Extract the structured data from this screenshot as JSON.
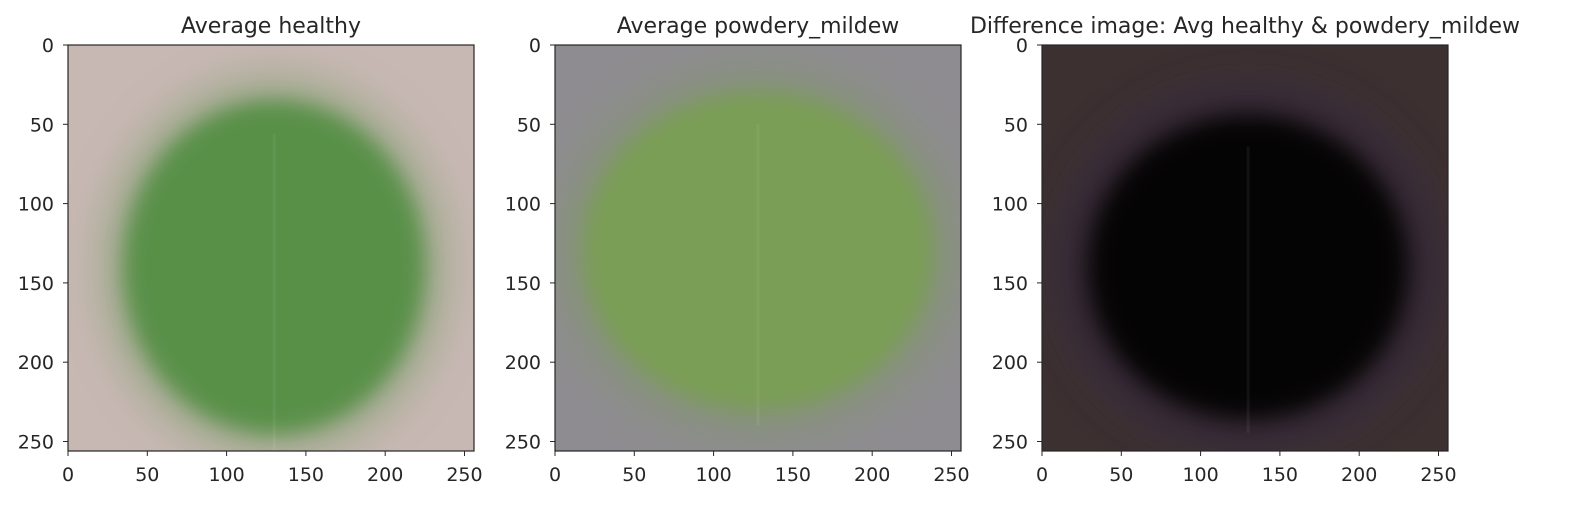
{
  "chart_data": [
    {
      "type": "heatmap",
      "title": "Average healthy",
      "xlabel": "",
      "ylabel": "",
      "xlim": [
        0,
        256
      ],
      "ylim": [
        256,
        0
      ],
      "xticks": [
        0,
        50,
        100,
        150,
        200,
        250
      ],
      "yticks": [
        0,
        50,
        100,
        150,
        200,
        250
      ],
      "grid": false,
      "background": "#c8b8b4",
      "leaf_color": "#4e8c3e",
      "leaf_center": [
        130,
        140
      ],
      "leaf_radius": [
        95,
        105
      ]
    },
    {
      "type": "heatmap",
      "title": "Average powdery_mildew",
      "xlabel": "",
      "ylabel": "",
      "xlim": [
        0,
        256
      ],
      "ylim": [
        256,
        0
      ],
      "xticks": [
        0,
        50,
        100,
        150,
        200,
        250
      ],
      "yticks": [
        0,
        50,
        100,
        150,
        200,
        250
      ],
      "grid": false,
      "background": "#8e8c90",
      "leaf_color": "#78a050",
      "leaf_center": [
        128,
        130
      ],
      "leaf_radius": [
        110,
        100
      ]
    },
    {
      "type": "heatmap",
      "title": "Difference image: Avg healthy & powdery_mildew",
      "xlabel": "",
      "ylabel": "",
      "xlim": [
        0,
        256
      ],
      "ylim": [
        256,
        0
      ],
      "xticks": [
        0,
        50,
        100,
        150,
        200,
        250
      ],
      "yticks": [
        0,
        50,
        100,
        150,
        200,
        250
      ],
      "grid": false,
      "background": "#3c3030",
      "leaf_color": "#040404",
      "rim_color": "#4e3a5c",
      "leaf_center": [
        130,
        140
      ],
      "leaf_radius": [
        100,
        95
      ]
    }
  ]
}
